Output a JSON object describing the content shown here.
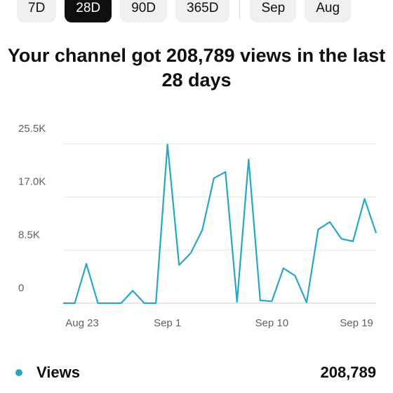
{
  "tabs": [
    "7D",
    "28D",
    "90D",
    "365D",
    "Sep",
    "Aug"
  ],
  "selected_tab": 1,
  "title": "Your channel got 208,789 views in the last 28 days",
  "chart_data": {
    "type": "line",
    "categories": [
      "Aug 23",
      null,
      null,
      null,
      null,
      null,
      null,
      null,
      null,
      "Sep 1",
      null,
      null,
      null,
      null,
      null,
      null,
      null,
      null,
      "Sep 10",
      null,
      null,
      null,
      null,
      null,
      null,
      null,
      null,
      "Sep 19"
    ],
    "series": [
      {
        "name": "Views",
        "color": "#27a6c9",
        "values": [
          0,
          0,
          6300,
          0,
          0,
          0,
          2000,
          0,
          0,
          25400,
          6100,
          8000,
          11700,
          20000,
          21000,
          200,
          23000,
          450,
          300,
          5600,
          4400,
          100,
          11800,
          13000,
          10300,
          9900,
          16700,
          11200
        ]
      }
    ],
    "ylim": [
      0,
      25500
    ],
    "yticks": [
      0,
      {
        "value": 8500,
        "label": "8.5K"
      },
      {
        "value": 17000,
        "label": "17.0K"
      },
      {
        "value": 25500,
        "label": "25.5K"
      }
    ],
    "grid": true
  },
  "summary": {
    "total": "208,789"
  }
}
